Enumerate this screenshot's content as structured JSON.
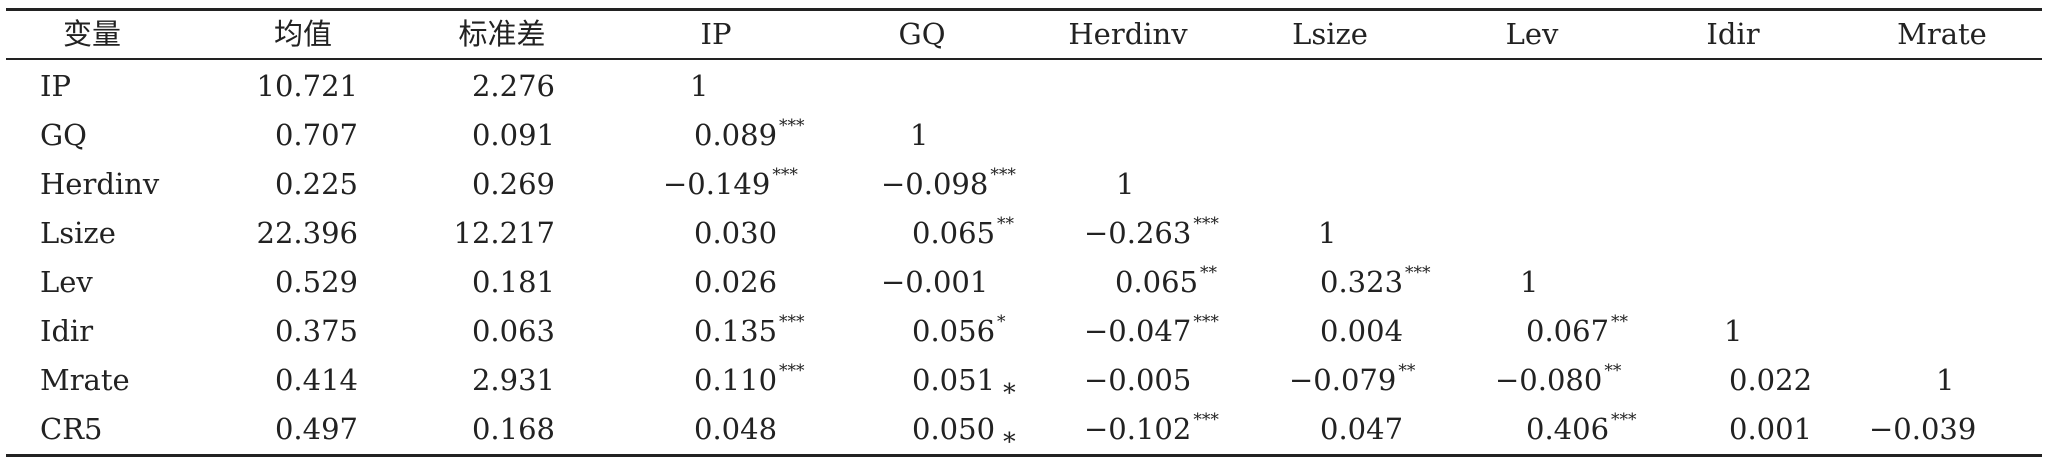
{
  "table": {
    "headers": [
      "变量",
      "均值",
      "标准差",
      "IP",
      "GQ",
      "Herdinv",
      "Lsize",
      "Lev",
      "Idir",
      "Mrate"
    ],
    "rows": [
      {
        "name": "IP",
        "mean": "10.721",
        "std": "2.276",
        "corr": [
          {
            "v": "1",
            "s": ""
          }
        ]
      },
      {
        "name": "GQ",
        "mean": "0.707",
        "std": "0.091",
        "corr": [
          {
            "v": "0.089",
            "s": "***"
          },
          {
            "v": "1",
            "s": ""
          }
        ]
      },
      {
        "name": "Herdinv",
        "mean": "0.225",
        "std": "0.269",
        "corr": [
          {
            "v": "−0.149",
            "s": "***"
          },
          {
            "v": "−0.098",
            "s": "***"
          },
          {
            "v": "1",
            "s": ""
          }
        ]
      },
      {
        "name": "Lsize",
        "mean": "22.396",
        "std": "12.217",
        "corr": [
          {
            "v": "0.030",
            "s": ""
          },
          {
            "v": "0.065",
            "s": "**"
          },
          {
            "v": "−0.263",
            "s": "***"
          },
          {
            "v": "1",
            "s": ""
          }
        ]
      },
      {
        "name": "Lev",
        "mean": "0.529",
        "std": "0.181",
        "corr": [
          {
            "v": "0.026",
            "s": ""
          },
          {
            "v": "−0.001",
            "s": ""
          },
          {
            "v": "0.065",
            "s": "**"
          },
          {
            "v": "0.323",
            "s": "***"
          },
          {
            "v": "1",
            "s": ""
          }
        ]
      },
      {
        "name": "Idir",
        "mean": "0.375",
        "std": "0.063",
        "corr": [
          {
            "v": "0.135",
            "s": "***"
          },
          {
            "v": "0.056",
            "s": "*"
          },
          {
            "v": "−0.047",
            "s": "***"
          },
          {
            "v": "0.004",
            "s": ""
          },
          {
            "v": "0.067",
            "s": "**"
          },
          {
            "v": "1",
            "s": ""
          }
        ]
      },
      {
        "name": "Mrate",
        "mean": "0.414",
        "std": "2.931",
        "corr": [
          {
            "v": "0.110",
            "s": "***"
          },
          {
            "v": "0.051",
            "s": "∗",
            "inline": true
          },
          {
            "v": "−0.005",
            "s": ""
          },
          {
            "v": "−0.079",
            "s": "**"
          },
          {
            "v": "−0.080",
            "s": "**"
          },
          {
            "v": "0.022",
            "s": ""
          },
          {
            "v": "1",
            "s": ""
          }
        ]
      },
      {
        "name": "CR5",
        "mean": "0.497",
        "std": "0.168",
        "corr": [
          {
            "v": "0.048",
            "s": ""
          },
          {
            "v": "0.050",
            "s": "∗",
            "inline": true
          },
          {
            "v": "−0.102",
            "s": "***"
          },
          {
            "v": "0.047",
            "s": ""
          },
          {
            "v": "0.406",
            "s": "***"
          },
          {
            "v": "0.001",
            "s": ""
          },
          {
            "v": "−0.039",
            "s": ""
          }
        ]
      }
    ]
  }
}
